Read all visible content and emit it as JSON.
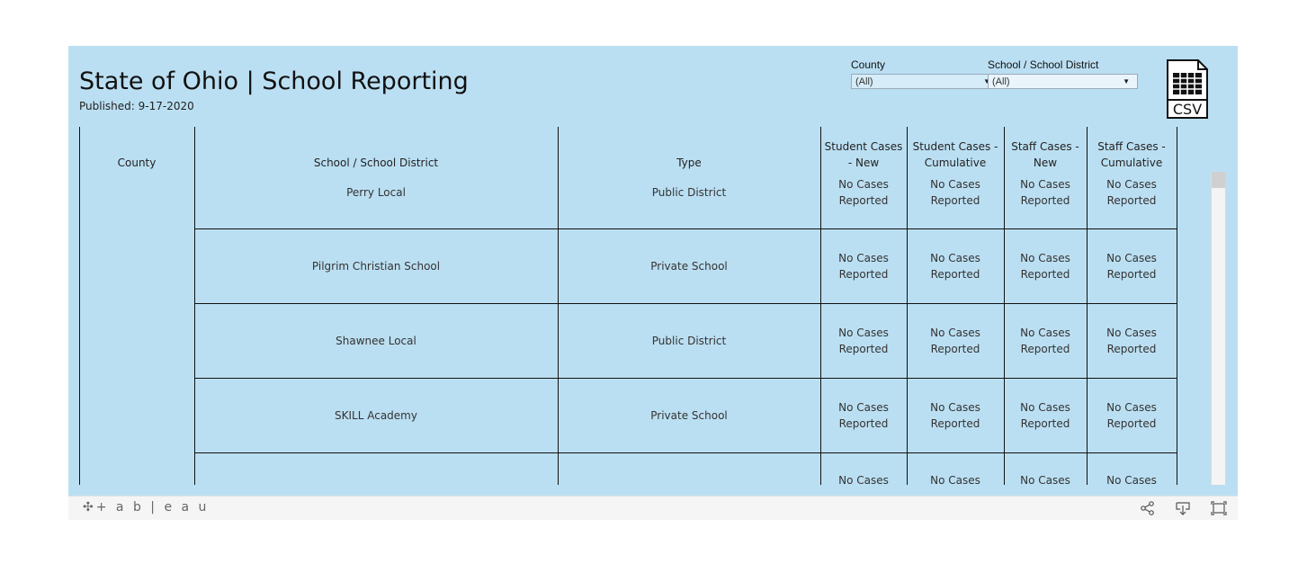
{
  "header": {
    "title": "State of Ohio | School Reporting",
    "published": "Published: 9-17-2020"
  },
  "filters": [
    {
      "label": "County",
      "value": "(All)"
    },
    {
      "label": "School / School District",
      "value": "(All)"
    }
  ],
  "csv_icon": {
    "label": "CSV",
    "icon": "csv-file-icon"
  },
  "table": {
    "columns": [
      "County",
      "School / School District",
      "Type",
      "Student Cases - New",
      "Student Cases - Cumulative",
      "Staff Cases - New",
      "Staff Cases - Cumulative"
    ],
    "column_header_lines": {
      "student_new": [
        "Student Cases",
        "- New"
      ],
      "student_cumulative": [
        "Student Cases -",
        "Cumulative"
      ],
      "staff_new": [
        "Staff Cases -",
        "New"
      ],
      "staff_cumulative": [
        "Staff Cases -",
        "Cumulative"
      ]
    },
    "no_cases_lines": [
      "No Cases",
      "Reported"
    ],
    "rows": [
      {
        "school": "Perry Local",
        "type": "Public District"
      },
      {
        "school": "Pilgrim Christian School",
        "type": "Private School"
      },
      {
        "school": "Shawnee Local",
        "type": "Public District"
      },
      {
        "school": "SKILL Academy",
        "type": "Private School"
      },
      {
        "school": "",
        "type": ""
      }
    ]
  },
  "footer": {
    "logo": "+ a b | e a u",
    "icons": [
      "share-icon",
      "download-icon",
      "fullscreen-icon"
    ]
  }
}
